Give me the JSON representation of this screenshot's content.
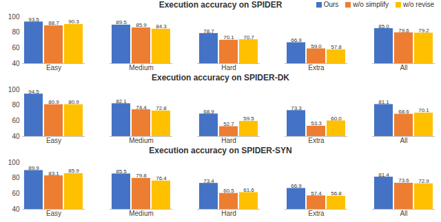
{
  "chart_data": [
    {
      "type": "bar",
      "title": "Execution accuracy on SPIDER",
      "categories": [
        "Easy",
        "Medium",
        "Hard",
        "Extra",
        "All"
      ],
      "series": [
        {
          "name": "Ours",
          "color": "#4472c4",
          "values": [
            93.5,
            89.5,
            78.7,
            66.9,
            85.0
          ],
          "value_labels": [
            "93.5",
            "89.5",
            "78.7",
            "66.9",
            "85.0"
          ]
        },
        {
          "name": "w/o simplify",
          "color": "#ed7d31",
          "values": [
            88.7,
            85.9,
            70.1,
            59.0,
            79.6
          ],
          "value_labels": [
            "88.7",
            "85.9",
            "70.1",
            "59.0",
            "79.6"
          ]
        },
        {
          "name": "w/o revise",
          "color": "#ffc000",
          "values": [
            90.3,
            84.3,
            70.7,
            57.8,
            79.2
          ],
          "value_labels": [
            "90.3",
            "84.3",
            "70.7",
            "57.8",
            "79.2"
          ]
        }
      ],
      "ylim": [
        40,
        100
      ],
      "yticks": [
        40,
        60,
        80,
        100
      ],
      "grid": false,
      "data_labels": true,
      "legend": "top-right"
    },
    {
      "type": "bar",
      "title": "Execution accuracy on SPIDER-DK",
      "categories": [
        "Easy",
        "Medium",
        "Hard",
        "Extra",
        "All"
      ],
      "series": [
        {
          "name": "Ours",
          "color": "#4472c4",
          "values": [
            94.5,
            82.1,
            68.9,
            73.3,
            81.1
          ],
          "value_labels": [
            "94.5",
            "82.1",
            "68.9",
            "73.3",
            "81.1"
          ]
        },
        {
          "name": "w/o simplify",
          "color": "#ed7d31",
          "values": [
            80.9,
            74.4,
            52.7,
            53.3,
            68.6
          ],
          "value_labels": [
            "80.9",
            "74.4",
            "52.7",
            "53.3",
            "68.6"
          ]
        },
        {
          "name": "w/o revise",
          "color": "#ffc000",
          "values": [
            80.9,
            72.8,
            59.5,
            60.0,
            70.1
          ],
          "value_labels": [
            "80.9",
            "72.8",
            "59.5",
            "60.0",
            "70.1"
          ]
        }
      ],
      "ylim": [
        40,
        100
      ],
      "yticks": [
        40,
        60,
        80,
        100
      ],
      "grid": false,
      "data_labels": true
    },
    {
      "type": "bar",
      "title": "Execution accuracy on SPIDER-SYN",
      "categories": [
        "Easy",
        "Medium",
        "Hard",
        "Extra",
        "All"
      ],
      "series": [
        {
          "name": "Ours",
          "color": "#4472c4",
          "values": [
            89.9,
            85.5,
            73.4,
            66.9,
            81.4
          ],
          "value_labels": [
            "89.9",
            "85.5",
            "73.4",
            "66.9",
            "81.4"
          ]
        },
        {
          "name": "w/o simplify",
          "color": "#ed7d31",
          "values": [
            83.1,
            79.8,
            60.5,
            57.4,
            73.6
          ],
          "value_labels": [
            "83.1",
            "79.8",
            "60.5",
            "57.4",
            "73.6"
          ]
        },
        {
          "name": "w/o revise",
          "color": "#ffc000",
          "values": [
            85.9,
            76.4,
            61.6,
            56.8,
            72.9
          ],
          "value_labels": [
            "85.9",
            "76.4",
            "61.6",
            "56.8",
            "72.9"
          ]
        }
      ],
      "ylim": [
        40,
        100
      ],
      "yticks": [
        40,
        60,
        80,
        100
      ],
      "grid": false,
      "data_labels": true
    }
  ]
}
